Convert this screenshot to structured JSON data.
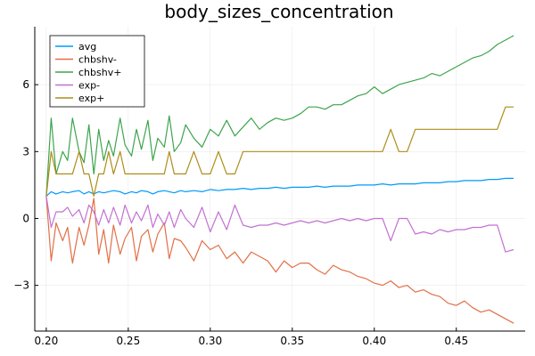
{
  "chart_data": {
    "type": "line",
    "title": "body_sizes_concentration",
    "xlabel": "",
    "ylabel": "",
    "xlim": [
      0.193,
      0.492
    ],
    "ylim": [
      -5.05,
      8.6
    ],
    "xticks": [
      0.2,
      0.25,
      0.3,
      0.35,
      0.4,
      0.45
    ],
    "xtick_labels": [
      "0.20",
      "0.25",
      "0.30",
      "0.35",
      "0.40",
      "0.45"
    ],
    "yticks": [
      -3,
      0,
      3,
      6
    ],
    "ytick_labels": [
      "−3",
      "0",
      "3",
      "6"
    ],
    "grid": true,
    "legend_position": "top-left",
    "series": [
      {
        "name": "avg",
        "color": "#009af9",
        "x": [
          0.2,
          0.203,
          0.206,
          0.21,
          0.213,
          0.216,
          0.22,
          0.223,
          0.226,
          0.229,
          0.232,
          0.235,
          0.238,
          0.241,
          0.245,
          0.248,
          0.252,
          0.255,
          0.258,
          0.262,
          0.265,
          0.268,
          0.272,
          0.275,
          0.278,
          0.282,
          0.285,
          0.29,
          0.295,
          0.3,
          0.305,
          0.31,
          0.315,
          0.32,
          0.325,
          0.33,
          0.335,
          0.34,
          0.345,
          0.35,
          0.355,
          0.36,
          0.365,
          0.37,
          0.375,
          0.38,
          0.385,
          0.39,
          0.395,
          0.4,
          0.405,
          0.41,
          0.415,
          0.42,
          0.425,
          0.43,
          0.435,
          0.44,
          0.445,
          0.45,
          0.455,
          0.46,
          0.465,
          0.47,
          0.475,
          0.48,
          0.485
        ],
        "y": [
          1.0,
          1.2,
          1.1,
          1.2,
          1.15,
          1.2,
          1.25,
          1.1,
          1.2,
          1.1,
          1.2,
          1.15,
          1.2,
          1.25,
          1.2,
          1.1,
          1.2,
          1.15,
          1.25,
          1.2,
          1.1,
          1.2,
          1.25,
          1.2,
          1.15,
          1.25,
          1.2,
          1.25,
          1.2,
          1.3,
          1.25,
          1.3,
          1.3,
          1.35,
          1.3,
          1.35,
          1.35,
          1.4,
          1.35,
          1.4,
          1.4,
          1.4,
          1.45,
          1.4,
          1.45,
          1.45,
          1.45,
          1.5,
          1.5,
          1.5,
          1.55,
          1.5,
          1.55,
          1.55,
          1.55,
          1.6,
          1.6,
          1.6,
          1.65,
          1.65,
          1.7,
          1.7,
          1.7,
          1.75,
          1.75,
          1.8,
          1.8
        ]
      },
      {
        "name": "chbshv-",
        "color": "#e26f46",
        "x": [
          0.2,
          0.203,
          0.206,
          0.21,
          0.213,
          0.216,
          0.22,
          0.223,
          0.226,
          0.229,
          0.232,
          0.235,
          0.238,
          0.241,
          0.245,
          0.248,
          0.252,
          0.255,
          0.258,
          0.262,
          0.265,
          0.268,
          0.272,
          0.275,
          0.278,
          0.282,
          0.285,
          0.29,
          0.295,
          0.3,
          0.305,
          0.31,
          0.315,
          0.32,
          0.325,
          0.33,
          0.335,
          0.34,
          0.345,
          0.35,
          0.355,
          0.36,
          0.365,
          0.37,
          0.375,
          0.38,
          0.385,
          0.39,
          0.395,
          0.4,
          0.405,
          0.41,
          0.415,
          0.42,
          0.425,
          0.43,
          0.435,
          0.44,
          0.445,
          0.45,
          0.455,
          0.46,
          0.465,
          0.47,
          0.475,
          0.48,
          0.485
        ],
        "y": [
          1.0,
          -1.9,
          -0.2,
          -1.0,
          -0.4,
          -2.0,
          -0.4,
          -1.2,
          -0.3,
          0.9,
          -1.6,
          -0.5,
          -2.0,
          -0.3,
          -1.6,
          -0.9,
          -0.4,
          -1.9,
          -0.8,
          -0.5,
          -1.5,
          -0.7,
          -0.2,
          -1.8,
          -0.9,
          -1.0,
          -1.3,
          -1.9,
          -1.0,
          -1.4,
          -1.2,
          -1.8,
          -1.5,
          -2.0,
          -1.5,
          -1.7,
          -1.9,
          -2.4,
          -1.9,
          -2.2,
          -2.0,
          -2.0,
          -2.3,
          -2.5,
          -2.1,
          -2.3,
          -2.4,
          -2.6,
          -2.7,
          -2.9,
          -3.0,
          -2.8,
          -3.1,
          -3.0,
          -3.3,
          -3.2,
          -3.4,
          -3.5,
          -3.8,
          -3.9,
          -3.7,
          -4.0,
          -4.2,
          -4.1,
          -4.3,
          -4.5,
          -4.7
        ]
      },
      {
        "name": "chbshv+",
        "color": "#3da44d",
        "x": [
          0.2,
          0.203,
          0.206,
          0.21,
          0.213,
          0.216,
          0.22,
          0.223,
          0.226,
          0.229,
          0.232,
          0.235,
          0.238,
          0.241,
          0.245,
          0.248,
          0.252,
          0.255,
          0.258,
          0.262,
          0.265,
          0.268,
          0.272,
          0.275,
          0.278,
          0.282,
          0.285,
          0.29,
          0.295,
          0.3,
          0.305,
          0.31,
          0.315,
          0.32,
          0.325,
          0.33,
          0.335,
          0.34,
          0.345,
          0.35,
          0.355,
          0.36,
          0.365,
          0.37,
          0.375,
          0.38,
          0.385,
          0.39,
          0.395,
          0.4,
          0.405,
          0.41,
          0.415,
          0.42,
          0.425,
          0.43,
          0.435,
          0.44,
          0.445,
          0.45,
          0.455,
          0.46,
          0.465,
          0.47,
          0.475,
          0.48,
          0.485
        ],
        "y": [
          1.0,
          4.5,
          2.0,
          3.0,
          2.6,
          4.5,
          3.0,
          2.5,
          4.2,
          2.0,
          4.0,
          2.6,
          3.5,
          2.8,
          4.5,
          3.3,
          2.8,
          4.0,
          3.1,
          4.4,
          2.6,
          3.6,
          3.2,
          4.6,
          3.0,
          3.4,
          4.2,
          3.6,
          3.2,
          4.0,
          3.7,
          4.4,
          3.7,
          4.1,
          4.5,
          4.0,
          4.3,
          4.5,
          4.4,
          4.5,
          4.7,
          5.0,
          5.0,
          4.9,
          5.1,
          5.1,
          5.3,
          5.5,
          5.6,
          5.9,
          5.6,
          5.8,
          6.0,
          6.1,
          6.2,
          6.3,
          6.5,
          6.4,
          6.6,
          6.8,
          7.0,
          7.2,
          7.3,
          7.5,
          7.8,
          8.0,
          8.2
        ]
      },
      {
        "name": "exp-",
        "color": "#c271d2",
        "x": [
          0.2,
          0.203,
          0.206,
          0.21,
          0.213,
          0.216,
          0.22,
          0.223,
          0.226,
          0.229,
          0.232,
          0.235,
          0.238,
          0.241,
          0.245,
          0.248,
          0.252,
          0.255,
          0.258,
          0.262,
          0.265,
          0.268,
          0.272,
          0.275,
          0.278,
          0.282,
          0.285,
          0.29,
          0.295,
          0.3,
          0.305,
          0.31,
          0.315,
          0.32,
          0.325,
          0.33,
          0.335,
          0.34,
          0.345,
          0.35,
          0.355,
          0.36,
          0.365,
          0.37,
          0.375,
          0.38,
          0.385,
          0.39,
          0.395,
          0.4,
          0.405,
          0.41,
          0.415,
          0.42,
          0.425,
          0.43,
          0.435,
          0.44,
          0.445,
          0.45,
          0.455,
          0.46,
          0.465,
          0.47,
          0.475,
          0.48,
          0.485
        ],
        "y": [
          1.0,
          -0.4,
          0.3,
          0.3,
          0.5,
          0.1,
          0.4,
          -0.2,
          0.6,
          0.3,
          -0.3,
          0.4,
          -0.2,
          0.5,
          -0.3,
          0.6,
          -0.2,
          0.3,
          -0.1,
          0.6,
          -0.4,
          0.2,
          -0.3,
          0.3,
          -0.4,
          0.4,
          0.0,
          -0.4,
          0.5,
          -0.6,
          0.3,
          -0.5,
          0.6,
          -0.3,
          -0.4,
          -0.3,
          -0.3,
          -0.2,
          -0.3,
          -0.2,
          -0.1,
          -0.2,
          -0.1,
          -0.2,
          -0.1,
          0.0,
          -0.1,
          0.0,
          -0.1,
          0.0,
          0.0,
          -1.0,
          0.0,
          0.0,
          -0.7,
          -0.6,
          -0.7,
          -0.5,
          -0.6,
          -0.5,
          -0.5,
          -0.4,
          -0.4,
          -0.3,
          -0.3,
          -1.5,
          -1.4
        ]
      },
      {
        "name": "exp+",
        "color": "#ac8d18",
        "x": [
          0.2,
          0.203,
          0.206,
          0.21,
          0.213,
          0.216,
          0.22,
          0.223,
          0.226,
          0.229,
          0.232,
          0.235,
          0.238,
          0.241,
          0.245,
          0.248,
          0.252,
          0.255,
          0.258,
          0.262,
          0.265,
          0.268,
          0.272,
          0.275,
          0.278,
          0.282,
          0.285,
          0.29,
          0.295,
          0.3,
          0.305,
          0.31,
          0.315,
          0.32,
          0.325,
          0.33,
          0.335,
          0.34,
          0.345,
          0.35,
          0.355,
          0.36,
          0.365,
          0.37,
          0.375,
          0.38,
          0.385,
          0.39,
          0.395,
          0.4,
          0.405,
          0.41,
          0.415,
          0.42,
          0.425,
          0.43,
          0.435,
          0.44,
          0.445,
          0.45,
          0.455,
          0.46,
          0.465,
          0.47,
          0.475,
          0.48,
          0.485
        ],
        "y": [
          1.0,
          3.0,
          2.0,
          2.0,
          2.0,
          2.0,
          3.0,
          2.0,
          2.0,
          1.0,
          2.0,
          2.0,
          3.0,
          2.0,
          3.0,
          2.0,
          2.0,
          2.0,
          2.0,
          2.0,
          2.0,
          2.0,
          2.0,
          3.0,
          2.0,
          2.0,
          2.0,
          3.0,
          2.0,
          2.0,
          3.0,
          2.0,
          2.0,
          3.0,
          3.0,
          3.0,
          3.0,
          3.0,
          3.0,
          3.0,
          3.0,
          3.0,
          3.0,
          3.0,
          3.0,
          3.0,
          3.0,
          3.0,
          3.0,
          3.0,
          3.0,
          4.0,
          3.0,
          3.0,
          4.0,
          4.0,
          4.0,
          4.0,
          4.0,
          4.0,
          4.0,
          4.0,
          4.0,
          4.0,
          4.0,
          5.0,
          5.0
        ]
      }
    ]
  }
}
